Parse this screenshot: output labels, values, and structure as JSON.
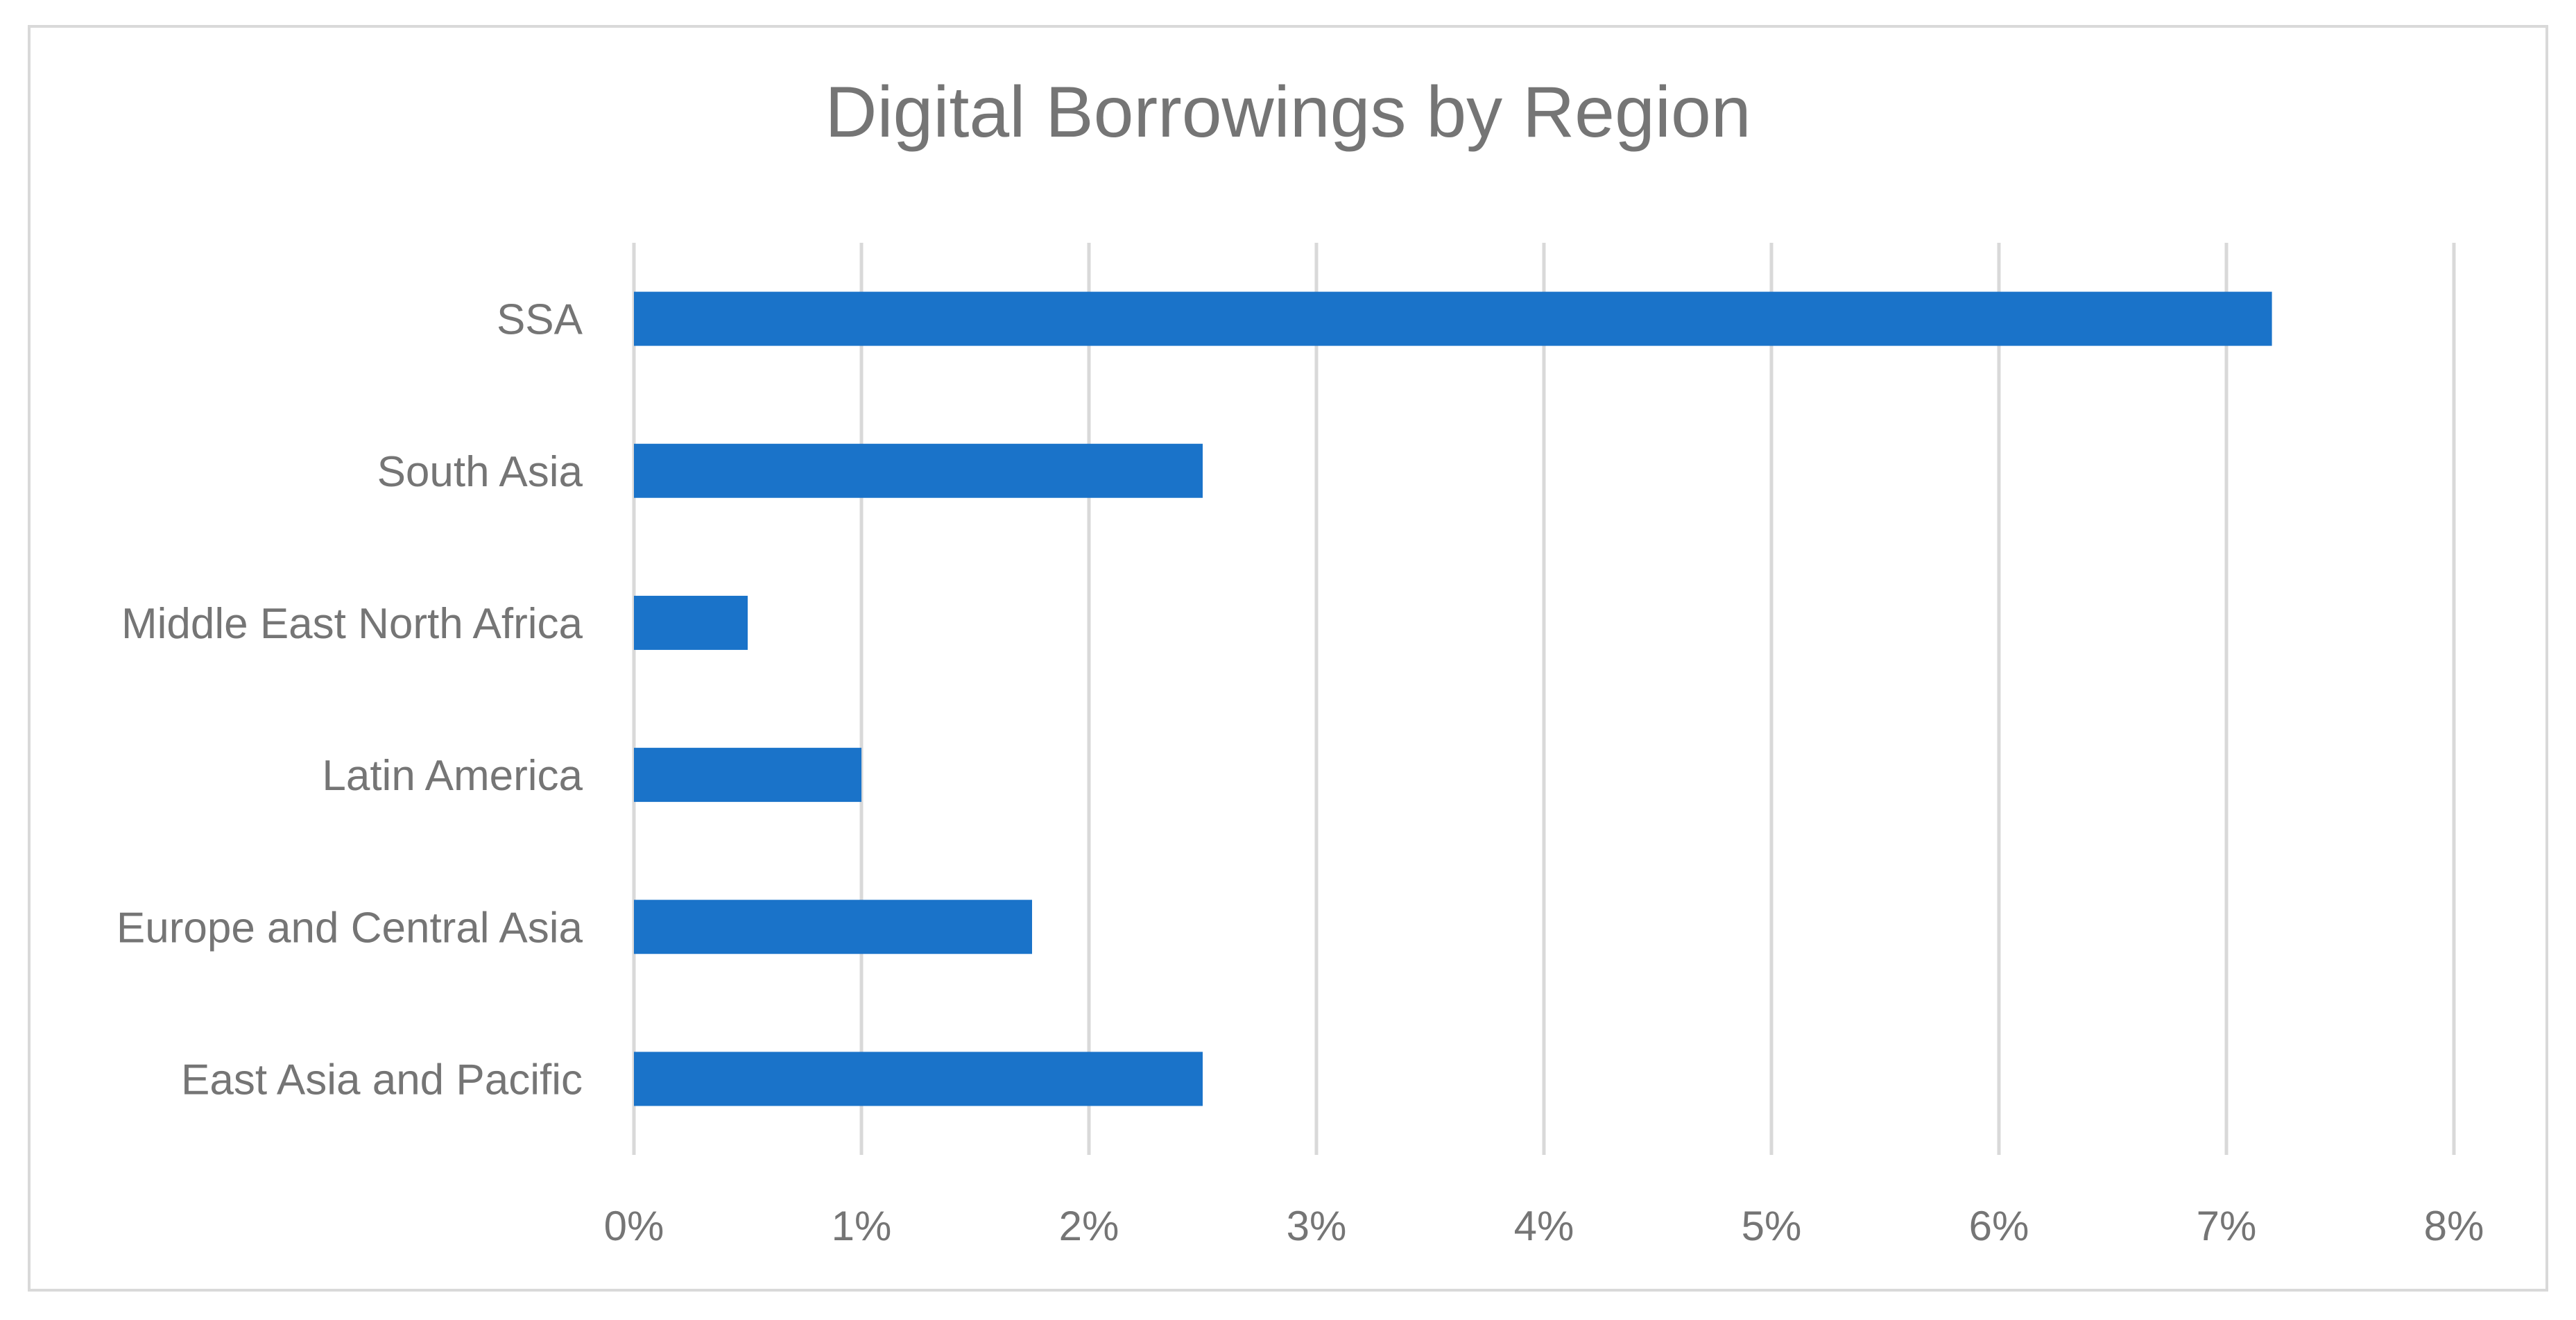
{
  "chart_data": {
    "type": "bar",
    "orientation": "horizontal",
    "title": "Digital Borrowings by Region",
    "categories": [
      "SSA",
      "South Asia",
      "Middle East North Africa",
      "Latin America",
      "Europe and Central Asia",
      "East Asia and Pacific"
    ],
    "values": [
      7.2,
      2.5,
      0.5,
      1.0,
      1.75,
      2.5
    ],
    "xlim": [
      0,
      8
    ],
    "x_ticks": [
      "0%",
      "1%",
      "2%",
      "3%",
      "4%",
      "5%",
      "6%",
      "7%",
      "8%"
    ],
    "grid": true,
    "bar_color": "#1a73c9",
    "grid_color": "#d9d9d9"
  }
}
